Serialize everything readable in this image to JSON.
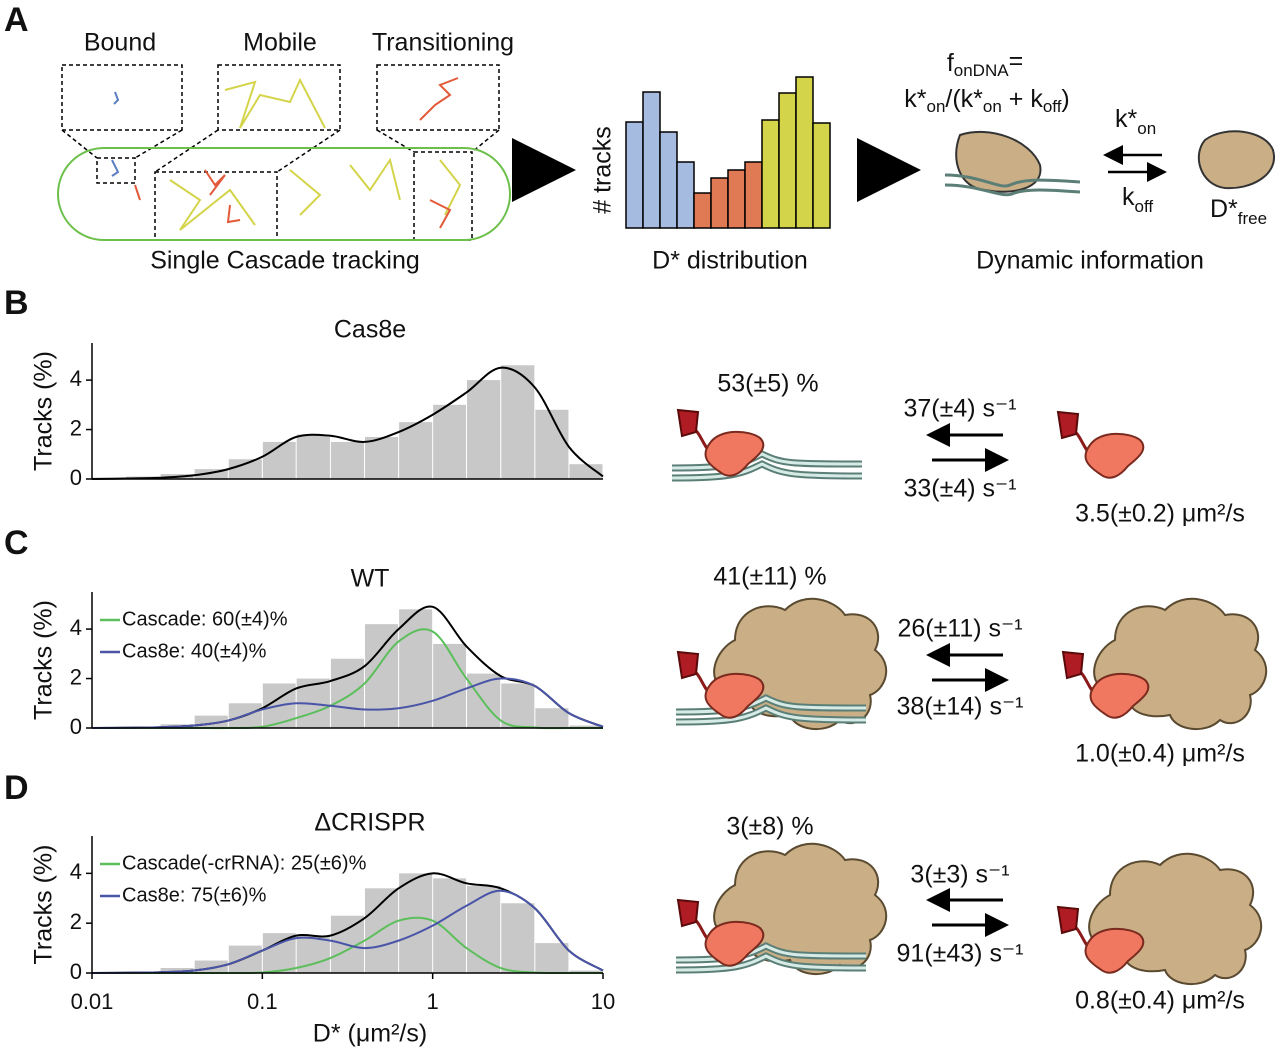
{
  "panels": {
    "A": {
      "letter": "A",
      "bound": "Bound",
      "mobile": "Mobile",
      "transitioning": "Transitioning",
      "cell_caption": "Single Cascade tracking",
      "hist_ylabel": "# tracks",
      "hist_caption": "D* distribution",
      "formula_top": [
        "f",
        "onDNA",
        "="
      ],
      "formula_bottom": [
        "k*",
        "on",
        "/(k*",
        "on",
        " + k",
        "off",
        ")"
      ],
      "k_on": [
        "k*",
        "on"
      ],
      "k_off": [
        "k",
        "off"
      ],
      "d_free": [
        "D*",
        "free"
      ],
      "caption": "Dynamic information"
    },
    "B": {
      "letter": "B",
      "bound_fraction": "53(±5) %",
      "k_on_rate": "37(±4) s⁻¹",
      "k_off_rate": "33(±4) s⁻¹",
      "diffusion": "3.5(±0.2) μm²/s"
    },
    "C": {
      "letter": "C",
      "bound_fraction": "41(±11) %",
      "k_on_rate": "26(±11) s⁻¹",
      "k_off_rate": "38(±14) s⁻¹",
      "diffusion": "1.0(±0.4) μm²/s"
    },
    "D": {
      "letter": "D",
      "bound_fraction": "3(±8) %",
      "k_on_rate": "3(±3) s⁻¹",
      "k_off_rate": "91(±43) s⁻¹",
      "diffusion": "0.8(±0.4) μm²/s"
    }
  },
  "chart_data": [
    {
      "type": "histogram",
      "title": "Cas8e",
      "y_label": "Tracks (%)",
      "xscale": "log",
      "bins": [
        0.01,
        0.0158,
        0.0251,
        0.0398,
        0.0631,
        0.1,
        0.158,
        0.251,
        0.398,
        0.631,
        1,
        1.58,
        2.51,
        3.98,
        6.31,
        10
      ],
      "counts": [
        0.05,
        0.1,
        0.2,
        0.4,
        0.8,
        1.5,
        1.8,
        1.5,
        1.7,
        2.3,
        3.0,
        4.0,
        4.6,
        2.8,
        0.6
      ],
      "color": "#c8c8c8",
      "x": [
        0.01,
        0.0158,
        0.0251,
        0.0398,
        0.0631,
        0.1,
        0.158,
        0.251,
        0.398,
        0.631,
        1,
        1.58,
        2.51,
        3.98,
        6.31,
        10
      ],
      "series": [
        {
          "color": "#000000",
          "values": [
            0,
            0.02,
            0.05,
            0.15,
            0.4,
            0.9,
            1.7,
            1.75,
            1.5,
            1.9,
            2.6,
            3.5,
            4.5,
            3.7,
            1.3,
            0.1
          ]
        }
      ],
      "xlim": [
        0.01,
        10
      ],
      "ylim": [
        0,
        5.5
      ],
      "yticks": [
        0,
        2,
        4
      ]
    },
    {
      "type": "histogram",
      "title": "WT",
      "y_label": "Tracks (%)",
      "xscale": "log",
      "bins": [
        0.01,
        0.0158,
        0.0251,
        0.0398,
        0.0631,
        0.1,
        0.158,
        0.251,
        0.398,
        0.631,
        1,
        1.58,
        2.51,
        3.98,
        6.31,
        10
      ],
      "counts": [
        0.02,
        0.05,
        0.15,
        0.5,
        1.0,
        1.8,
        2.0,
        2.8,
        4.2,
        4.8,
        3.4,
        2.2,
        1.8,
        0.8,
        0.1
      ],
      "color": "#c8c8c8",
      "x": [
        0.01,
        0.0158,
        0.0251,
        0.0398,
        0.0631,
        0.1,
        0.158,
        0.251,
        0.398,
        0.631,
        1,
        1.58,
        2.51,
        3.98,
        6.31,
        10
      ],
      "series": [
        {
          "color": "#000000",
          "values": [
            0,
            0.01,
            0.03,
            0.1,
            0.3,
            0.8,
            1.6,
            1.9,
            2.5,
            4.0,
            4.9,
            3.3,
            2.1,
            1.7,
            0.6,
            0.05
          ]
        },
        {
          "name": "Cascade: 60(±4)%",
          "color": "#5cbf5c",
          "values": [
            0,
            0,
            0,
            0,
            0,
            0.05,
            0.4,
            0.9,
            1.8,
            3.5,
            3.9,
            2.0,
            0.3,
            0.02,
            0,
            0
          ]
        },
        {
          "name": "Cas8e: 40(±4)%",
          "color": "#4a55a8",
          "values": [
            0,
            0.01,
            0.03,
            0.1,
            0.3,
            0.75,
            1.0,
            0.9,
            0.75,
            0.8,
            1.1,
            1.6,
            2.0,
            1.7,
            0.6,
            0.05
          ]
        }
      ],
      "xlim": [
        0.01,
        10
      ],
      "ylim": [
        0,
        5.5
      ],
      "yticks": [
        0,
        2,
        4
      ]
    },
    {
      "type": "histogram",
      "title": "ΔCRISPR",
      "y_label": "Tracks (%)",
      "x_label": "D* (μm²/s)",
      "xscale": "log",
      "bins": [
        0.01,
        0.0158,
        0.0251,
        0.0398,
        0.0631,
        0.1,
        0.158,
        0.251,
        0.398,
        0.631,
        1,
        1.58,
        2.51,
        3.98,
        6.31,
        10
      ],
      "counts": [
        0.02,
        0.05,
        0.2,
        0.5,
        1.1,
        1.6,
        1.5,
        2.3,
        3.4,
        4.0,
        3.8,
        3.5,
        2.8,
        1.2,
        0.1
      ],
      "color": "#c8c8c8",
      "x": [
        0.01,
        0.0158,
        0.0251,
        0.0398,
        0.0631,
        0.1,
        0.158,
        0.251,
        0.398,
        0.631,
        1,
        1.58,
        2.51,
        3.98,
        6.31,
        10
      ],
      "series": [
        {
          "color": "#000000",
          "values": [
            0,
            0.01,
            0.03,
            0.1,
            0.35,
            0.9,
            1.5,
            1.5,
            2.2,
            3.4,
            4.0,
            3.6,
            3.4,
            2.6,
            0.9,
            0.1
          ]
        },
        {
          "name": "Cascade(-crRNA): 25(±6)%",
          "color": "#5cbf5c",
          "values": [
            0,
            0,
            0,
            0,
            0,
            0.02,
            0.2,
            0.6,
            1.3,
            2.1,
            2.1,
            1.0,
            0.2,
            0.02,
            0,
            0
          ]
        },
        {
          "name": "Cas8e: 75(±6)%",
          "color": "#4a55a8",
          "values": [
            0,
            0.01,
            0.03,
            0.1,
            0.35,
            0.9,
            1.4,
            1.3,
            1.0,
            1.3,
            1.9,
            2.7,
            3.3,
            2.6,
            0.9,
            0.1
          ]
        }
      ],
      "xlim": [
        0.01,
        10
      ],
      "ylim": [
        0,
        5.5
      ],
      "yticks": [
        0,
        2,
        4
      ],
      "xticks": [
        0.01,
        0.1,
        1,
        10
      ]
    }
  ]
}
